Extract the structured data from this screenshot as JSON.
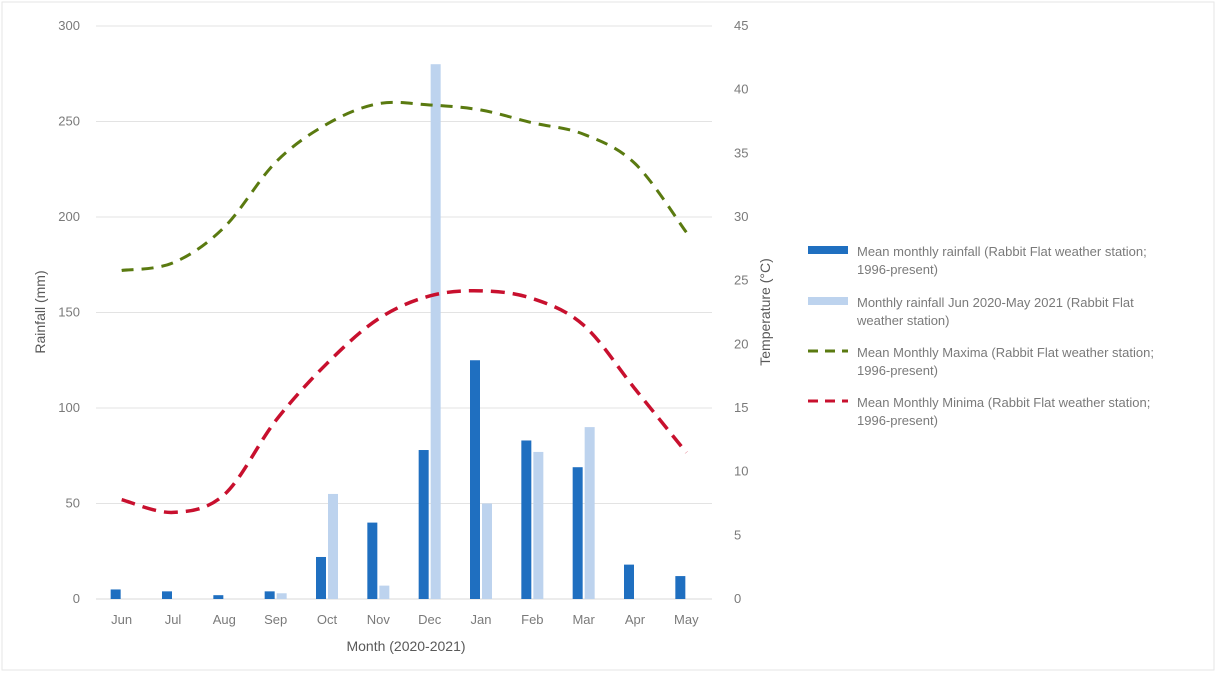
{
  "chart_data": {
    "type": "bar",
    "title": "",
    "xlabel": "Month (2020-2021)",
    "ylabel": "Rainfall (mm)",
    "y2label": "Temperature (°C)",
    "categories": [
      "Jun",
      "Jul",
      "Aug",
      "Sep",
      "Oct",
      "Nov",
      "Dec",
      "Jan",
      "Feb",
      "Mar",
      "Apr",
      "May"
    ],
    "ylim": [
      0,
      300
    ],
    "yticks": [
      0,
      50,
      100,
      150,
      200,
      250,
      300
    ],
    "y2lim": [
      0,
      45
    ],
    "y2ticks": [
      0,
      5,
      10,
      15,
      20,
      25,
      30,
      35,
      40,
      45
    ],
    "grid": true,
    "legend_position": "right",
    "series": [
      {
        "name": "Mean monthly rainfall (Rabbit Flat weather station; 1996-present)",
        "kind": "bar",
        "axis": "left",
        "color": "#1f6fc0",
        "values": [
          5,
          4,
          2,
          4,
          22,
          40,
          78,
          125,
          83,
          69,
          18,
          12
        ]
      },
      {
        "name": "Monthly rainfall Jun 2020-May 2021 (Rabbit Flat weather station)",
        "kind": "bar",
        "axis": "left",
        "color": "#bdd3ee",
        "values": [
          0,
          0,
          0,
          3,
          55,
          7,
          280,
          50,
          77,
          90,
          0,
          0
        ]
      },
      {
        "name": "Mean Monthly Maxima (Rabbit Flat weather station; 1996-present)",
        "kind": "line",
        "axis": "right",
        "color": "#5a7a10",
        "values": [
          25.8,
          26.4,
          29.2,
          34.3,
          37.3,
          38.9,
          38.8,
          38.4,
          37.4,
          36.5,
          34.2,
          28.8
        ]
      },
      {
        "name": "Mean Monthly Minima (Rabbit Flat weather station; 1996-present)",
        "kind": "line",
        "axis": "right",
        "color": "#c8102e",
        "values": [
          7.8,
          6.8,
          8.2,
          14,
          18.5,
          22,
          23.8,
          24.2,
          23.6,
          21.5,
          16.5,
          11.5
        ]
      }
    ]
  }
}
